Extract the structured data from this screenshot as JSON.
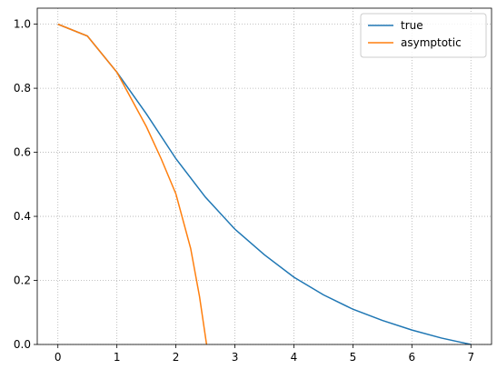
{
  "chart_data": {
    "type": "line",
    "series": [
      {
        "name": "true",
        "color": "#1f77b4",
        "x": [
          0,
          0.5,
          1,
          1.5,
          2,
          2.5,
          3,
          3.5,
          4,
          4.5,
          5,
          5.5,
          6,
          6.5,
          7
        ],
        "values": [
          1.0,
          0.963,
          0.85,
          0.72,
          0.58,
          0.46,
          0.36,
          0.28,
          0.21,
          0.155,
          0.11,
          0.075,
          0.045,
          0.02,
          0.0
        ]
      },
      {
        "name": "asymptotic",
        "color": "#ff7f0e",
        "x": [
          0,
          0.5,
          1,
          1.5,
          1.75,
          2,
          2.25,
          2.4,
          2.52
        ],
        "values": [
          1.0,
          0.963,
          0.85,
          0.68,
          0.58,
          0.47,
          0.3,
          0.15,
          0.0
        ]
      }
    ],
    "xlim": [
      -0.35,
      7.35
    ],
    "ylim": [
      0,
      1.05
    ],
    "xticks": [
      0,
      1,
      2,
      3,
      4,
      5,
      6,
      7
    ],
    "yticks": [
      {
        "value": 0,
        "label": "0.0"
      },
      {
        "value": 0.2,
        "label": "0.2"
      },
      {
        "value": 0.4,
        "label": "0.4"
      },
      {
        "value": 0.6,
        "label": "0.6"
      },
      {
        "value": 0.8,
        "label": "0.8"
      },
      {
        "value": 1.0,
        "label": "1.0"
      }
    ],
    "grid": true,
    "legend": "upper right"
  }
}
